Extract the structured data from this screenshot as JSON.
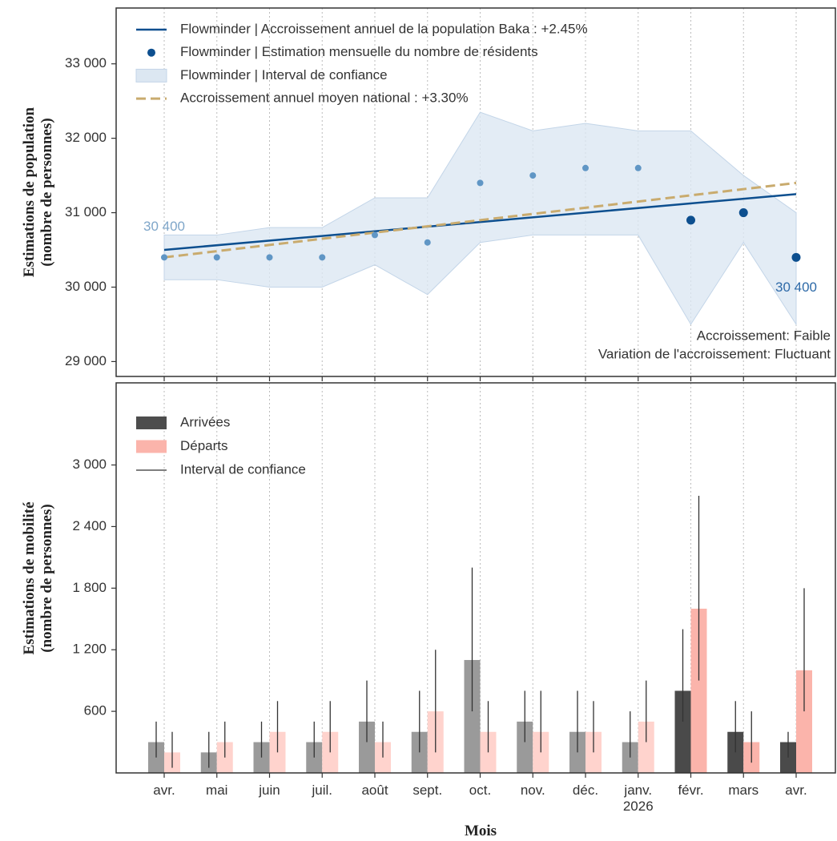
{
  "chart_data": [
    {
      "type": "line",
      "ylabel": "Estimations de population\n(nombre de personnes)",
      "categories": [
        "avr.",
        "mai",
        "juin",
        "juil.",
        "août",
        "sept.",
        "oct.",
        "nov.",
        "déc.",
        "janv.\n2026",
        "févr.",
        "mars",
        "avr."
      ],
      "ylim": [
        28800,
        33750
      ],
      "yticks": [
        {
          "value": 29000,
          "label": "29 000"
        },
        {
          "value": 30000,
          "label": "30 000"
        },
        {
          "value": 31000,
          "label": "31 000"
        },
        {
          "value": 32000,
          "label": "32 000"
        },
        {
          "value": 33000,
          "label": "33 000"
        }
      ],
      "grid_x": true,
      "series": [
        {
          "name": "Flowminder | Accroissement annuel de la population Baka : +2.45%",
          "kind": "line",
          "color": "#0d4f8f",
          "x": [
            0,
            12
          ],
          "values": [
            30500,
            31250
          ]
        },
        {
          "name": "Flowminder | Estimation mensuelle du nombre de résidents",
          "kind": "scatter",
          "color": "#0d4f8f",
          "colors": [
            "#6096c5",
            "#6096c5",
            "#6096c5",
            "#6096c5",
            "#6096c5",
            "#6096c5",
            "#6096c5",
            "#6096c5",
            "#6096c5",
            "#6096c5",
            "#0d4f8f",
            "#0d4f8f",
            "#0d4f8f"
          ],
          "values": [
            30400,
            30400,
            30400,
            30400,
            30700,
            30600,
            31400,
            31500,
            31600,
            31600,
            30900,
            31000,
            30400
          ]
        },
        {
          "name": "Flowminder | Interval de confiance",
          "kind": "band",
          "color": "#dce7f2",
          "lower": [
            30100,
            30100,
            30000,
            30000,
            30300,
            29900,
            30600,
            30700,
            30700,
            30700,
            29500,
            30600,
            29500
          ],
          "upper": [
            30700,
            30700,
            30800,
            30800,
            31200,
            31200,
            32350,
            32100,
            32200,
            32100,
            32100,
            31500,
            31000
          ]
        },
        {
          "name": "Accroissement annuel moyen national : +3.30%",
          "kind": "dashed",
          "color": "#c9ab6e",
          "x": [
            0,
            12
          ],
          "values": [
            30400,
            31400
          ]
        }
      ],
      "annotations": [
        {
          "text": "30 400",
          "value": 30400,
          "color": "#7fa6c9"
        },
        {
          "text": "30 400",
          "value": 30400,
          "color": "#2e6aa8"
        }
      ],
      "notes": [
        "Accroissement: Faible",
        "Variation de l'accroissement: Fluctuant"
      ]
    },
    {
      "type": "bar",
      "ylabel": "Estimations de mobilité\n(nombre de personnes)",
      "xlabel": "Mois",
      "categories": [
        "avr.",
        "mai",
        "juin",
        "juil.",
        "août",
        "sept.",
        "oct.",
        "nov.",
        "déc.",
        "janv.\n2026",
        "févr.",
        "mars",
        "avr."
      ],
      "ylim": [
        0,
        3800
      ],
      "yticks": [
        600,
        {
          "value": 1200,
          "label": "1 200"
        },
        {
          "value": 1800,
          "label": "1 800"
        },
        {
          "value": 2400,
          "label": "2 400"
        },
        {
          "value": 3000,
          "label": "3 000"
        }
      ],
      "grid_x": true,
      "error_name": "Interval de confiance",
      "series": [
        {
          "name": "Arrivées",
          "color": "#4d4d4d",
          "colors": [
            "#9a9a9a",
            "#9a9a9a",
            "#9a9a9a",
            "#9a9a9a",
            "#9a9a9a",
            "#9a9a9a",
            "#9a9a9a",
            "#9a9a9a",
            "#9a9a9a",
            "#9a9a9a",
            "#4a4a4a",
            "#4a4a4a",
            "#4a4a4a"
          ],
          "values": [
            300,
            200,
            300,
            300,
            500,
            400,
            1100,
            500,
            400,
            300,
            800,
            400,
            300
          ],
          "lower": [
            150,
            50,
            150,
            150,
            300,
            200,
            600,
            300,
            200,
            150,
            500,
            200,
            150
          ],
          "upper": [
            500,
            400,
            500,
            500,
            900,
            800,
            2000,
            800,
            800,
            600,
            1400,
            700,
            400
          ]
        },
        {
          "name": "Départs",
          "color": "#fbb4ab",
          "colors": [
            "#ffd3cd",
            "#ffd3cd",
            "#ffd3cd",
            "#ffd3cd",
            "#ffd3cd",
            "#ffd3cd",
            "#ffd3cd",
            "#ffd3cd",
            "#ffd3cd",
            "#ffd3cd",
            "#fbb4ab",
            "#fbb4ab",
            "#fbb4ab"
          ],
          "values": [
            200,
            300,
            400,
            400,
            300,
            600,
            400,
            400,
            400,
            500,
            1600,
            300,
            1000
          ],
          "lower": [
            50,
            150,
            200,
            200,
            150,
            200,
            200,
            200,
            200,
            300,
            900,
            100,
            600
          ],
          "upper": [
            400,
            500,
            700,
            700,
            500,
            1200,
            700,
            800,
            700,
            900,
            2700,
            600,
            1800
          ]
        }
      ]
    }
  ]
}
